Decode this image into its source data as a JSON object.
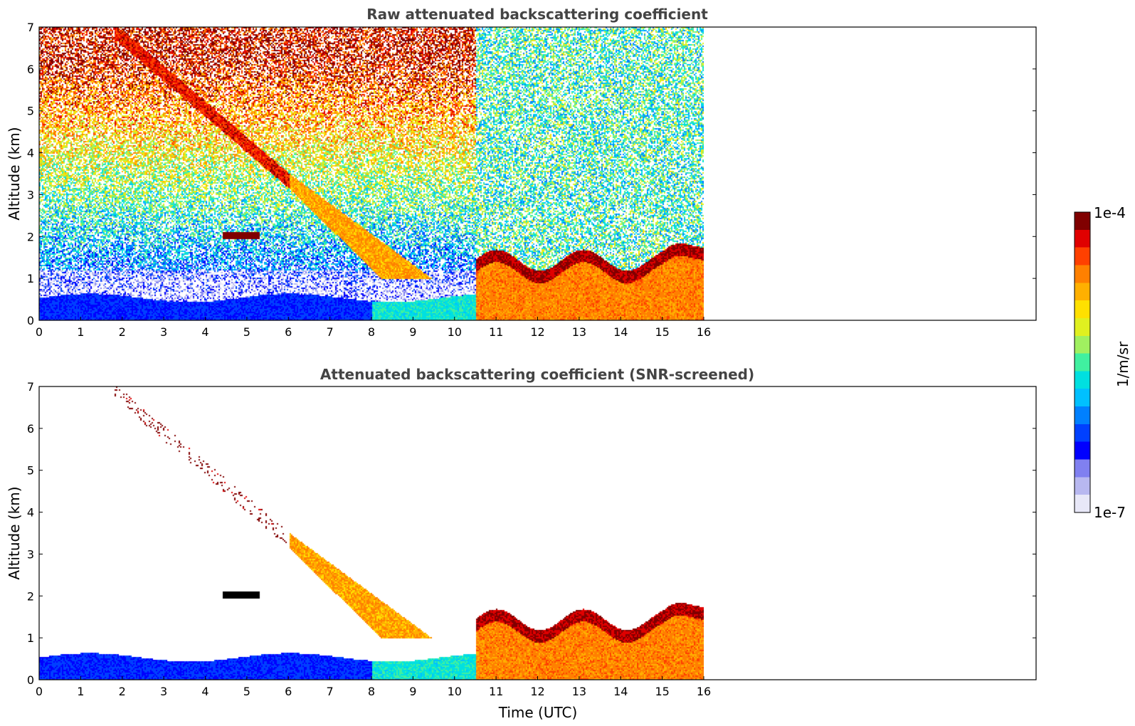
{
  "chart_data": [
    {
      "type": "heatmap",
      "title": "Raw attenuated backscattering coefficient",
      "xlabel": "",
      "ylabel": "Altitude (km)",
      "xlim": [
        0,
        16
      ],
      "xlim_axis": [
        0,
        24
      ],
      "ylim": [
        0,
        7
      ],
      "xticks": [
        "0",
        "1",
        "2",
        "3",
        "4",
        "5",
        "6",
        "7",
        "8",
        "9",
        "10",
        "11",
        "12",
        "13",
        "14",
        "15",
        "16"
      ],
      "yticks": [
        "0",
        "1",
        "2",
        "3",
        "4",
        "5",
        "6",
        "7"
      ],
      "screened": false
    },
    {
      "type": "heatmap",
      "title": "Attenuated backscattering coefficient (SNR-screened)",
      "xlabel": "Time (UTC)",
      "ylabel": "Altitude (km)",
      "xlim": [
        0,
        16
      ],
      "xlim_axis": [
        0,
        24
      ],
      "ylim": [
        0,
        7
      ],
      "xticks": [
        "0",
        "1",
        "2",
        "3",
        "4",
        "5",
        "6",
        "7",
        "8",
        "9",
        "10",
        "11",
        "12",
        "13",
        "14",
        "15",
        "16"
      ],
      "yticks": [
        "0",
        "1",
        "2",
        "3",
        "4",
        "5",
        "6",
        "7"
      ],
      "screened": true
    }
  ],
  "colorbar": {
    "label": "1/m/sr",
    "max_label": "1e-4",
    "min_label": "1e-7",
    "scale": "log",
    "range": [
      1e-07,
      0.0001
    ],
    "colors": [
      "#e8e8f8",
      "#b8b8f0",
      "#8080f0",
      "#0000ff",
      "#0040ff",
      "#0080ff",
      "#00c0ff",
      "#00e0e0",
      "#40f0a0",
      "#a0f060",
      "#e0f020",
      "#ffe000",
      "#ffb000",
      "#ff8000",
      "#ff4000",
      "#e00000",
      "#800000"
    ]
  }
}
